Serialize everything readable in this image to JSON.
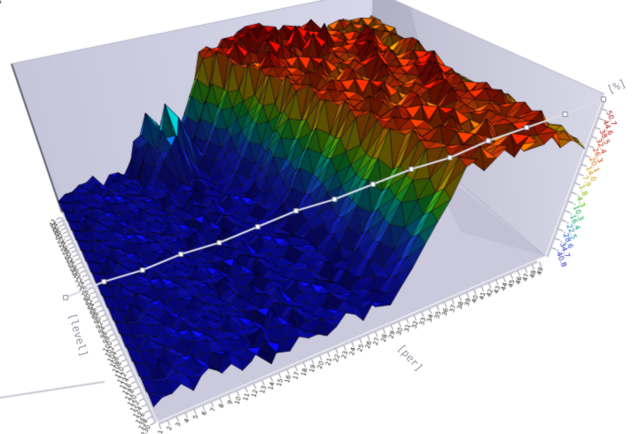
{
  "chart_data": {
    "type": "surface3d",
    "title": "",
    "xlabel": "[per]",
    "ylabel": "[level]",
    "zlabel": "[%]",
    "x_ticks": [
      1,
      2,
      3,
      4,
      5,
      6,
      7,
      8,
      9,
      10,
      11,
      12,
      13,
      14,
      15,
      16,
      17,
      18,
      19,
      20,
      21,
      22,
      23,
      24,
      25,
      26,
      27,
      28,
      29,
      30,
      31,
      32,
      33,
      34,
      35,
      36,
      37,
      38,
      39,
      40,
      41,
      42,
      43,
      44,
      45,
      46,
      47,
      48,
      49,
      50
    ],
    "y_ticks": [
      40,
      42,
      44,
      46,
      48,
      50,
      52,
      54,
      56,
      58,
      60,
      62,
      64,
      66,
      68,
      70,
      72,
      74,
      76,
      78,
      80,
      82,
      84,
      86,
      88,
      90,
      92,
      94,
      96,
      98,
      100,
      102,
      104,
      106,
      108,
      110,
      112,
      114,
      116,
      118,
      120,
      122,
      124,
      126,
      128,
      130
    ],
    "z_ticks": [
      "50.7",
      "44.6",
      "38.5",
      "32.4",
      "26.3",
      "20.1",
      "14.0",
      "7.9",
      "1.8",
      "-4.3",
      "-10.3",
      "-16.4",
      "-22.5",
      "-28.6",
      "-34.7",
      "-40.8"
    ],
    "z_range": [
      -45,
      57
    ],
    "colormap": "jet",
    "grid_rows_order": "front-to-back",
    "z_value_encoding": "base36_digit*3-42",
    "z_grid": [
      "1223134231240313221243143258cgkqroqsptrqsopom",
      "2134223142313024213234231369dhlrqsprtqorspqon",
      "1223341322404133122313423247bfjqsrpqorqtspoon",
      "2142312433223241431243212458chlrqpsrqosqrtpno",
      "122431342322304132234231369cgkqrospqtrsqrspon",
      "213323413243031322341324258cgkrqtsrpoqsrqtqon",
      "124233124223231340423213269dhlsqrptqrosrpsqom",
      "213241322313423231324242347bfjqrsoqtprqsrqpon",
      "12233134232230413223423158chlrqspotrqsqprtqon",
      "21342312423130242313234269cgkqsrqtprosqrtspqo",
      "12233413224041331223134258cgkrqtsproqursqtqpo",
      "21423124332232414312432169dhlsqrpqtrovsrpsqon",
      "1224313423223041322342347bfjqrospqtrsuqrspqon",
      "2133234132430313223413258chlrqtsrpoqsrvqtqpon",
      "1242331242232313404232169cgksqrptqrosrwpsqomn",
      "2132413223134232313242458cgkqrsoqtprqsurqspon",
      "122331342322304132234269dhlrqspotrqsqprutqpon",
      "213423124231302423132347bfjqsrqtprosqrtsvpqon",
      "122334132240413312231358chlrqtsproqursqtqupon",
      "214231243322324143124369cgksqrpqtrovsrpsqtqon",
      "12243134232230413223458cgkqrospqtrsuqrsptqpon",
      "21332341324303132234169dhlrqtsrpoqsrvqtqspoon",
      "12423312422323134042347bfjsqrptqrosrwpsqomtqn",
      "21324132231342323132458chlqrsoqtprqsurqspotqn",
      "1223313423223041322369cgkrqspotrqsqprutqposqn",
      "2134231242313024231358cgkqsrqtprosqrtsvpqorqn",
      "1223341322404133122369dhlrvtsproqursqtwuponqo",
      "214231243322324143147bfjsqrpvtrowsrpsqtqonrqo",
      "122431342322304132258chlqrowsqtrsuxrsptqporqn",
      "21332341324358ad7469cgkrqtsvwoqxsrutqsponrqoq",
      "12423312422369c8ga58cgksvrqtwxrspuqtrsqponqro",
      "213241322317b8dj669dhltsrvwuxtqsvrwtsoqpnrqoo",
      "122331342325a7c9647bfjrtsvuwxsrvtqusrpnqrporq",
      "213423124268bgd958chlqsrutvwrsqtpsrqonpsqnroq",
      "122334132249a68c69cgkrsqtsuvqrsprqsponqorqpnq"
    ],
    "overlay_line": {
      "style": "line-with-square-markers",
      "color": "#dcdce8",
      "marker_count": 15
    },
    "colors": {
      "background": "#ffffff",
      "wall_left": "#cdcde0",
      "wall_right": "#c3c3d5",
      "floor": "#cbcadd",
      "axis_tick": "#8a8a9a",
      "tick_label": "#1a1a1a",
      "axis_title": "#9595a8",
      "overlay_line": "#dcdce8"
    }
  }
}
